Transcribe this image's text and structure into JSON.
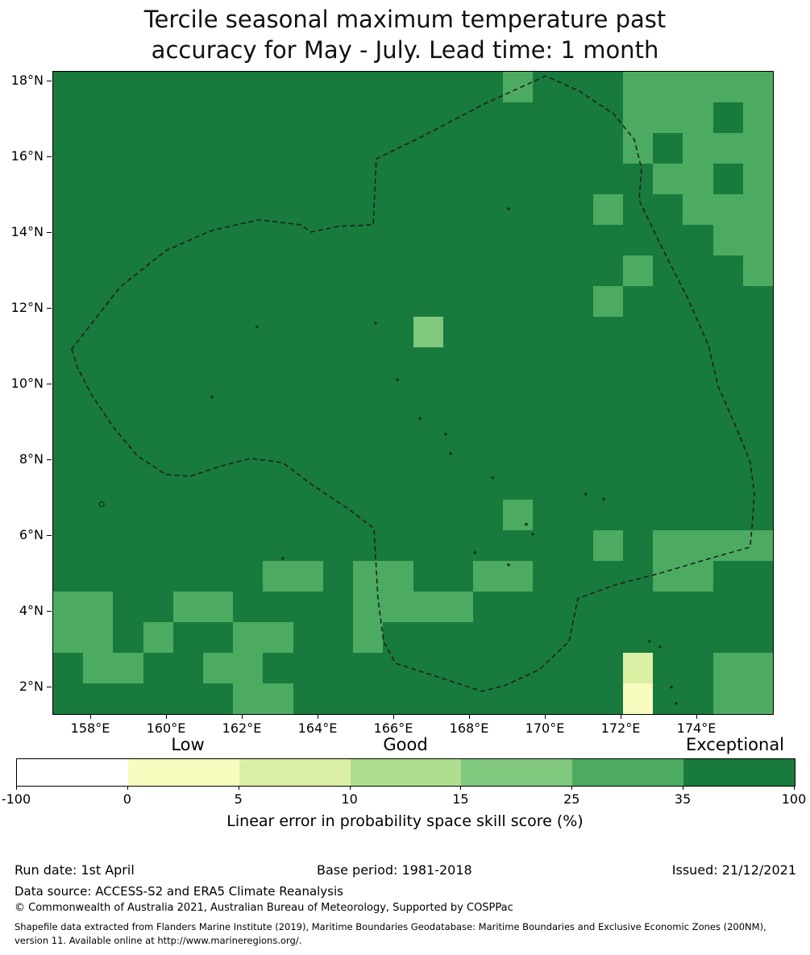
{
  "title": {
    "line1": "Tercile seasonal maximum temperature past",
    "line2": "accuracy for May - July. Lead time: 1 month"
  },
  "footer": {
    "run_date": "Run date: 1st April",
    "base_period": "Base period: 1981-2018",
    "issued": "Issued: 21/12/2021",
    "data_source": "Data source: ACCESS-S2 and ERA5 Climate Reanalysis",
    "copyright": "© Commonwealth of Australia 2021, Australian Bureau of Meteorology, Supported by COSPPac",
    "shapefile_line1": "Shapefile data extracted from Flanders Marine Institute (2019), Maritime Boundaries Geodatabase: Maritime Boundaries and Exclusive Economic Zones (200NM),",
    "shapefile_line2": "version 11. Available online at http://www.marineregions.org/."
  },
  "chart_data": {
    "type": "heatmap",
    "title": "Tercile seasonal maximum temperature past accuracy for May - July. Lead time: 1 month",
    "colorbar_label": "Linear error in probability space skill score (%)",
    "lon_range": [
      157.0,
      176.0
    ],
    "lat_range": [
      1.29,
      18.25
    ],
    "x_ticks": [
      {
        "label": "158°E",
        "lon": 158
      },
      {
        "label": "160°E",
        "lon": 160
      },
      {
        "label": "162°E",
        "lon": 162
      },
      {
        "label": "164°E",
        "lon": 164
      },
      {
        "label": "166°E",
        "lon": 166
      },
      {
        "label": "168°E",
        "lon": 168
      },
      {
        "label": "170°E",
        "lon": 170
      },
      {
        "label": "172°E",
        "lon": 172
      },
      {
        "label": "174°E",
        "lon": 174
      }
    ],
    "y_ticks": [
      {
        "label": "18°N",
        "lat": 18
      },
      {
        "label": "16°N",
        "lat": 16
      },
      {
        "label": "14°N",
        "lat": 14
      },
      {
        "label": "12°N",
        "lat": 12
      },
      {
        "label": "10°N",
        "lat": 10
      },
      {
        "label": "8°N",
        "lat": 8
      },
      {
        "label": "6°N",
        "lat": 6
      },
      {
        "label": "4°N",
        "lat": 4
      },
      {
        "label": "2°N",
        "lat": 2
      }
    ],
    "legend": {
      "categories": [
        "Low",
        "Good",
        "Exceptional"
      ],
      "tick_labels": [
        "-100",
        "0",
        "5",
        "10",
        "15",
        "25",
        "35",
        "100"
      ],
      "bins": [
        [
          -100,
          0
        ],
        [
          0,
          5
        ],
        [
          5,
          10
        ],
        [
          10,
          15
        ],
        [
          15,
          25
        ],
        [
          25,
          35
        ],
        [
          35,
          100
        ]
      ],
      "segment_colors": [
        "#ffffff",
        "#f7fbbd",
        "#dcf0a5",
        "#afdc8f",
        "#80c87e",
        "#4cab61",
        "#187a3c"
      ]
    },
    "bin_colors": {
      "1": "#ffffff",
      "2": "#f7fbbd",
      "3": "#dcf0a5",
      "4": "#afdc8f",
      "5": "#80c87e",
      "6": "#4cab61",
      "7": "#187a3c"
    },
    "bin_ranges": {
      "1": "-100-0",
      "2": "0-5",
      "3": "5-10",
      "4": "10-15",
      "5": "15-25",
      "6": "25-35",
      "7": "35-100"
    },
    "grid": [
      "777777777777777677766666",
      "777777777777777777766676",
      "777777777777777777767666",
      "777777777777777777776676",
      "777777777777777777677666",
      "777777777777777777777766",
      "777777777777777777767776",
      "777777777777777777677777",
      "777777777777577777777777",
      "777777777777777777777777",
      "777777777777777777777777",
      "777777777777777777777777",
      "777777777777777777777777",
      "777777777777777777777777",
      "777777777777777677777777",
      "777777777777777777676666",
      "777777766766776677776677",
      "667766777766667777777777",
      "667677667767777777777777",
      "766776677777777777737766",
      "777777667777777777727766"
    ],
    "boundary": [
      [
        157.49,
        10.93
      ],
      [
        157.64,
        10.44
      ],
      [
        158.0,
        9.74
      ],
      [
        158.6,
        8.85
      ],
      [
        159.23,
        8.1
      ],
      [
        159.98,
        7.61
      ],
      [
        160.62,
        7.57
      ],
      [
        161.4,
        7.83
      ],
      [
        162.21,
        8.04
      ],
      [
        163.06,
        7.93
      ],
      [
        163.81,
        7.36
      ],
      [
        164.77,
        6.72
      ],
      [
        165.47,
        6.19
      ],
      [
        165.57,
        4.38
      ],
      [
        165.72,
        3.21
      ],
      [
        166.04,
        2.63
      ],
      [
        167.21,
        2.25
      ],
      [
        168.32,
        1.89
      ],
      [
        168.91,
        2.04
      ],
      [
        169.83,
        2.46
      ],
      [
        170.62,
        3.21
      ],
      [
        170.85,
        4.34
      ],
      [
        171.83,
        4.7
      ],
      [
        173.06,
        5.02
      ],
      [
        174.34,
        5.4
      ],
      [
        175.4,
        5.7
      ],
      [
        175.45,
        6.25
      ],
      [
        175.51,
        7.1
      ],
      [
        175.4,
        7.95
      ],
      [
        175.02,
        8.89
      ],
      [
        174.55,
        9.95
      ],
      [
        174.3,
        11.02
      ],
      [
        173.74,
        12.29
      ],
      [
        173.06,
        13.63
      ],
      [
        172.47,
        14.85
      ],
      [
        172.53,
        15.7
      ],
      [
        172.34,
        16.46
      ],
      [
        171.79,
        17.14
      ],
      [
        170.89,
        17.74
      ],
      [
        170.0,
        18.14
      ],
      [
        168.38,
        17.4
      ],
      [
        166.68,
        16.51
      ],
      [
        165.53,
        15.95
      ],
      [
        165.45,
        14.21
      ],
      [
        164.55,
        14.17
      ],
      [
        163.81,
        14.02
      ],
      [
        163.53,
        14.21
      ],
      [
        162.43,
        14.34
      ],
      [
        161.19,
        14.06
      ],
      [
        159.98,
        13.53
      ],
      [
        158.77,
        12.57
      ]
    ],
    "islands": [
      [
        158.28,
        6.83,
        1
      ],
      [
        161.19,
        9.66
      ],
      [
        162.38,
        11.51
      ],
      [
        163.06,
        5.4
      ],
      [
        165.51,
        11.61
      ],
      [
        169.02,
        14.63
      ],
      [
        166.09,
        10.12
      ],
      [
        166.68,
        9.1
      ],
      [
        167.36,
        8.68
      ],
      [
        167.49,
        8.17
      ],
      [
        168.6,
        7.53
      ],
      [
        168.13,
        5.55
      ],
      [
        169.02,
        5.23
      ],
      [
        169.49,
        6.3
      ],
      [
        169.66,
        6.04
      ],
      [
        171.06,
        7.1
      ],
      [
        171.53,
        6.97
      ],
      [
        172.74,
        3.21
      ],
      [
        173.02,
        3.06
      ],
      [
        173.32,
        2.0
      ],
      [
        173.45,
        1.57
      ]
    ]
  }
}
